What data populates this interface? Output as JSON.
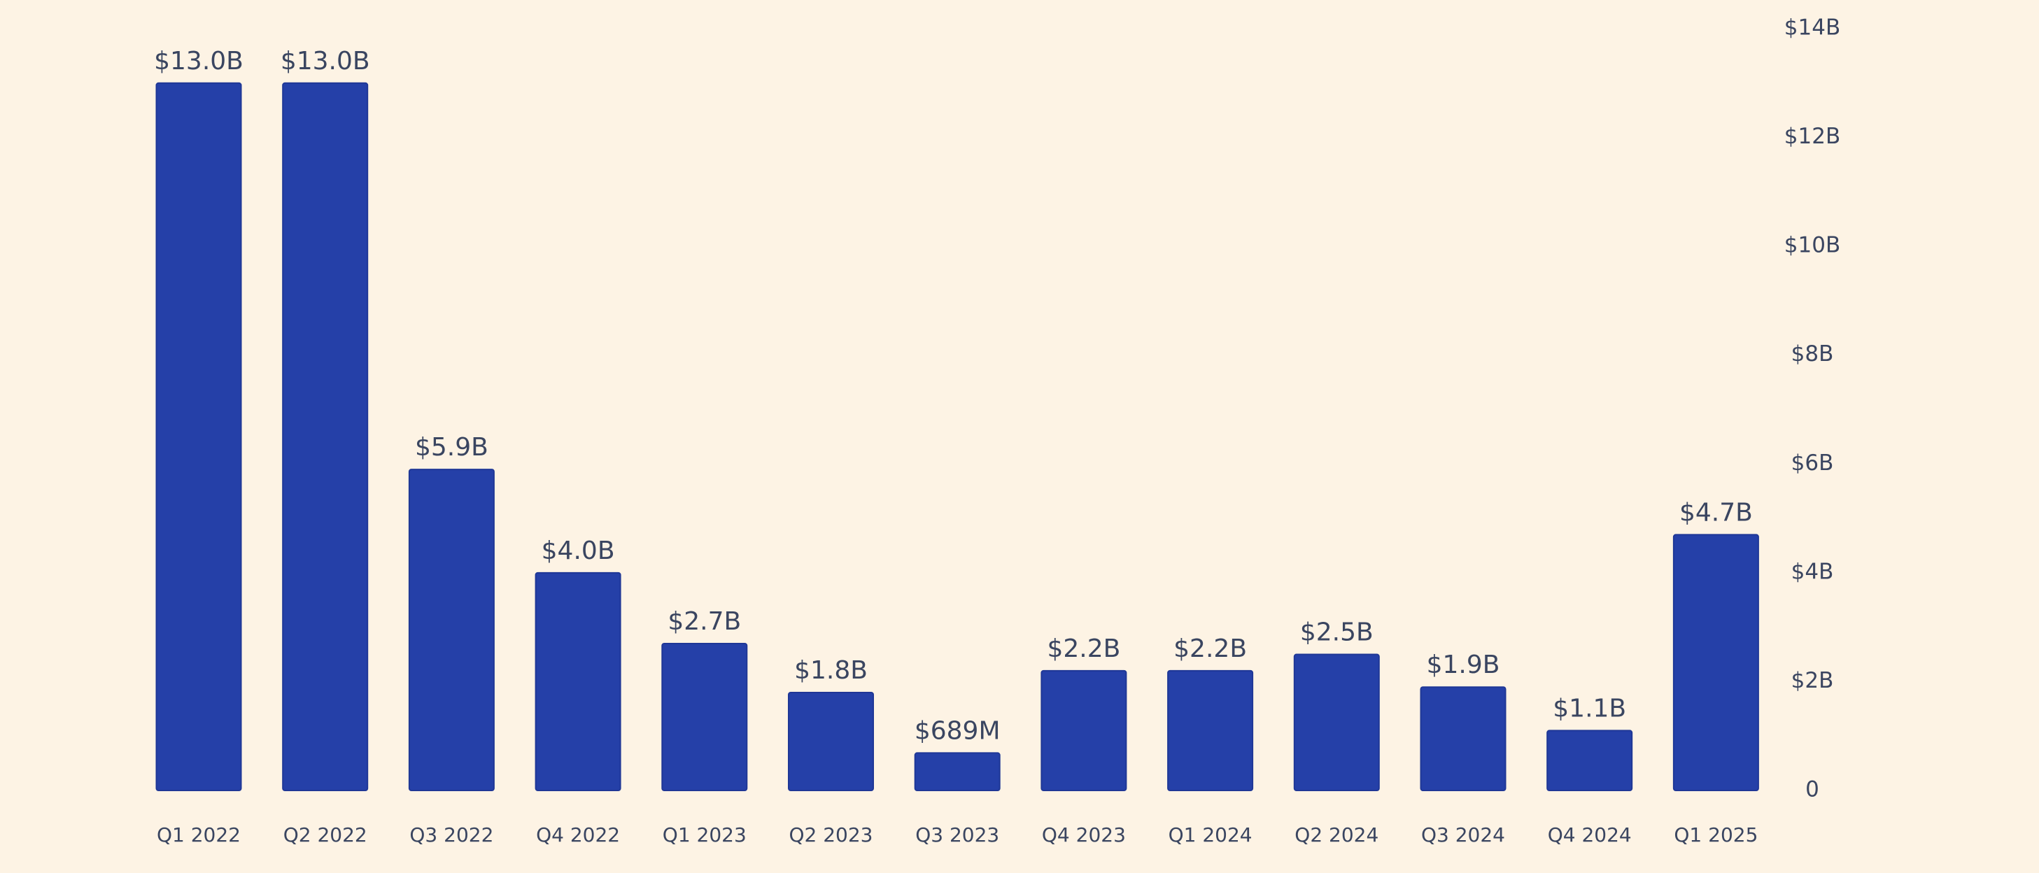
{
  "chart_data": {
    "type": "bar",
    "categories": [
      "Q1 2022",
      "Q2 2022",
      "Q3 2022",
      "Q4 2022",
      "Q1 2023",
      "Q2 2023",
      "Q3 2023",
      "Q4 2023",
      "Q1 2024",
      "Q2 2024",
      "Q3 2024",
      "Q4 2024",
      "Q1 2025"
    ],
    "values": [
      13.0,
      13.0,
      5.9,
      4.0,
      2.7,
      1.8,
      0.689,
      2.2,
      2.2,
      2.5,
      1.9,
      1.1,
      4.7
    ],
    "value_labels": [
      "$13.0B",
      "$13.0B",
      "$5.9B",
      "$4.0B",
      "$2.7B",
      "$1.8B",
      "$689M",
      "$2.2B",
      "$2.2B",
      "$2.5B",
      "$1.9B",
      "$1.1B",
      "$4.7B"
    ],
    "color": "#2540a8",
    "ylim": [
      0,
      14
    ],
    "yticks": [
      0,
      {
        "value": 2,
        "label": "$2B"
      },
      {
        "value": 4,
        "label": "$4B"
      },
      {
        "value": 6,
        "label": "$6B"
      },
      {
        "value": 8,
        "label": "$8B"
      },
      {
        "value": 10,
        "label": "$10B"
      },
      {
        "value": 12,
        "label": "$12B"
      },
      {
        "value": 14,
        "label": "$14B"
      }
    ],
    "grid": false
  }
}
